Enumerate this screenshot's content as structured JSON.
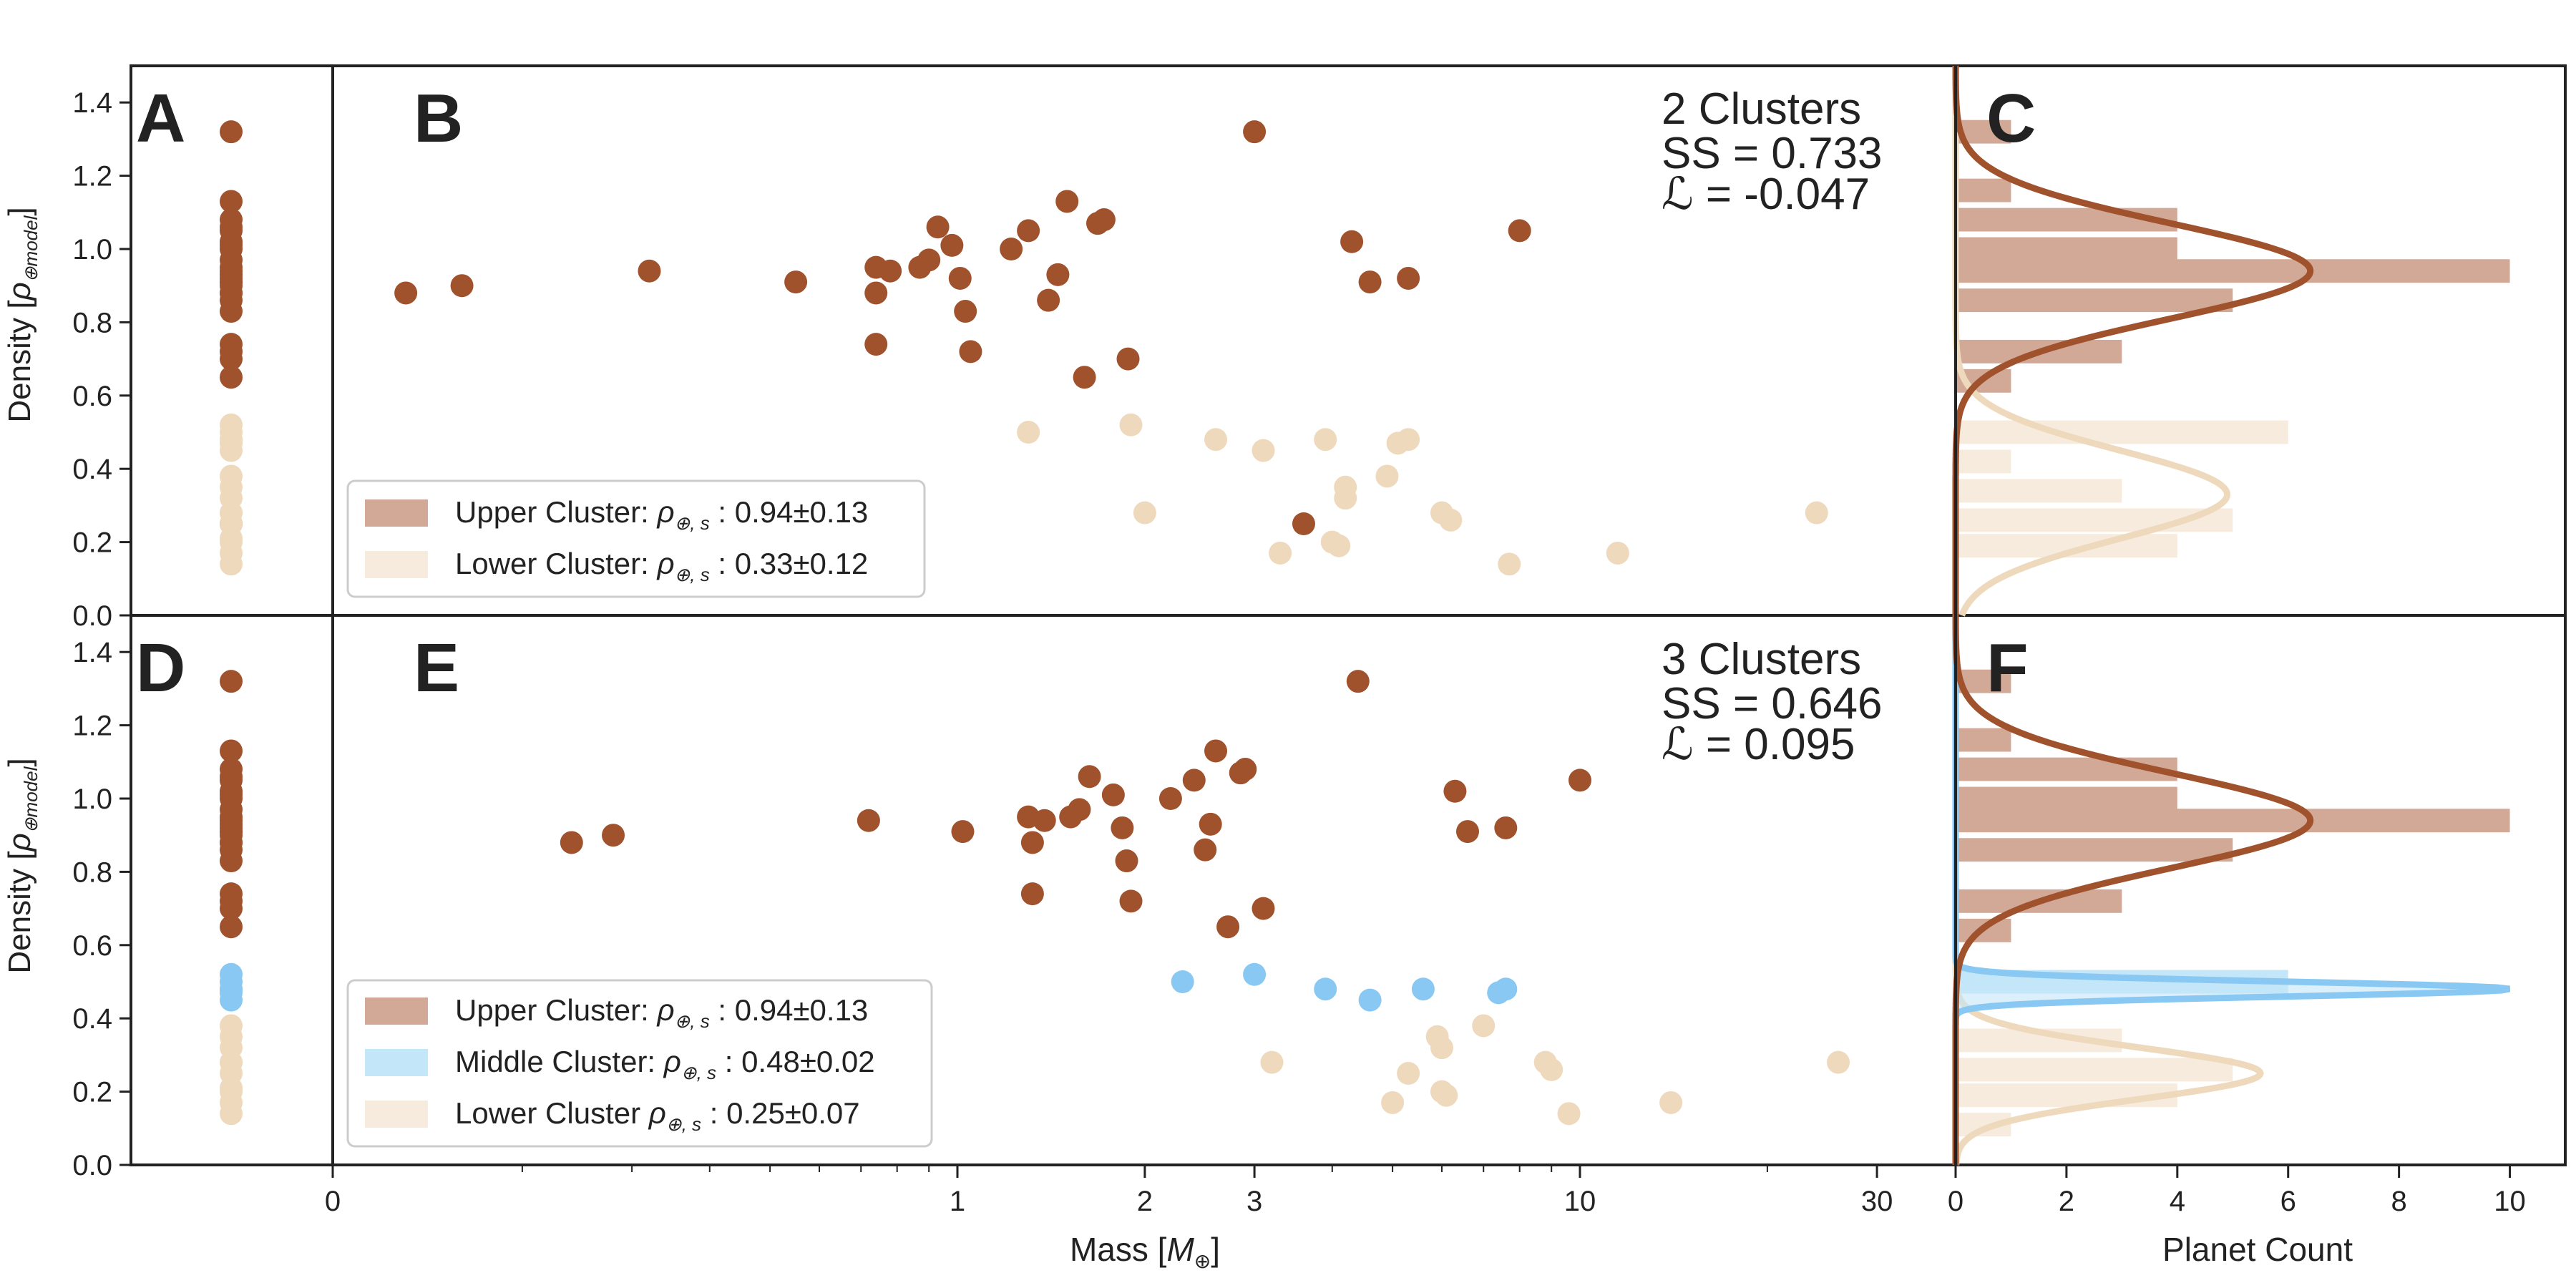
{
  "colors": {
    "upper": "#a0522d",
    "upper_bar": "#d2a997",
    "middle": "#88c8f2",
    "middle_bar": "#c3e6f9",
    "lower": "#eed9bd",
    "lower_bar": "#f6ebdd",
    "axis": "#222222"
  },
  "panel_letters": [
    "A",
    "B",
    "C",
    "D",
    "E",
    "F"
  ],
  "axes_text": {
    "ylabel_main": "Density [",
    "ylabel_rho": "ρ",
    "ylabel_sub": "⊕model",
    "ylabel_end": "]",
    "xlabel_mass": "Mass [",
    "xlabel_M": "M",
    "xlabel_sub": "⊕",
    "xlabel_end": "]",
    "xlabel_count": "Planet Count",
    "y_ticks": [
      "0.0",
      "0.2",
      "0.4",
      "0.6",
      "0.8",
      "1.0",
      "1.2",
      "1.4"
    ],
    "mass_ticks": [
      {
        "value": 0,
        "label": "0"
      },
      {
        "value": 1,
        "label": "1"
      },
      {
        "value": 2,
        "label": "2"
      },
      {
        "value": 3,
        "label": "3"
      },
      {
        "value": 10,
        "label": "10"
      },
      {
        "value": 30,
        "label": "30"
      }
    ],
    "count_ticks": [
      "0",
      "2",
      "4",
      "6",
      "8",
      "10"
    ]
  },
  "annotations": {
    "top": {
      "line1": "2 Clusters",
      "line2": "SS = 0.733",
      "line3": "ℒ = -0.047"
    },
    "bottom": {
      "line1": "3 Clusters",
      "line2": "SS = 0.646",
      "line3": "ℒ = 0.095"
    }
  },
  "legends": {
    "top": [
      {
        "cluster": "upper",
        "label": "Upper Cluster: ",
        "rho": "ρ",
        "sub": "⊕, s",
        "value": " : 0.94±0.13"
      },
      {
        "cluster": "lower",
        "label": "Lower Cluster: ",
        "rho": "ρ",
        "sub": "⊕, s",
        "value": " : 0.33±0.12"
      }
    ],
    "bottom": [
      {
        "cluster": "upper",
        "label": "Upper Cluster: ",
        "rho": "ρ",
        "sub": "⊕, s",
        "value": " : 0.94±0.13"
      },
      {
        "cluster": "middle",
        "label": "Middle Cluster: ",
        "rho": "ρ",
        "sub": "⊕, s",
        "value": " : 0.48±0.02"
      },
      {
        "cluster": "lower",
        "label": "Lower Cluster ",
        "rho": "ρ",
        "sub": "⊕, s",
        "value": " : 0.25±0.07"
      }
    ]
  },
  "chart_data": [
    {
      "panel": "A",
      "type": "scatter",
      "description_free": true,
      "ylim": [
        0,
        1.5
      ],
      "points_upper": [
        1.32,
        1.13,
        1.08,
        1.06,
        1.05,
        1.02,
        1.01,
        1.0,
        0.97,
        0.95,
        0.94,
        0.93,
        0.92,
        0.91,
        0.91,
        0.9,
        0.88,
        0.88,
        0.86,
        0.83,
        0.74,
        0.72,
        0.7,
        0.65,
        0.25
      ],
      "points_lower": [
        0.52,
        0.5,
        0.48,
        0.48,
        0.47,
        0.45,
        0.38,
        0.35,
        0.32,
        0.28,
        0.28,
        0.25,
        0.21,
        0.2,
        0.17,
        0.14
      ]
    },
    {
      "panel": "B",
      "type": "scatter",
      "xscale": "log",
      "xlim": [
        0.1,
        41
      ],
      "ylim": [
        0,
        1.5
      ],
      "xlabel": "Mass [M⊕]",
      "ylabel": "Density [ρ⊕model]",
      "upper": [
        [
          0.13,
          0.88
        ],
        [
          0.16,
          0.9
        ],
        [
          0.32,
          0.94
        ],
        [
          0.55,
          0.91
        ],
        [
          0.74,
          0.95
        ],
        [
          0.74,
          0.88
        ],
        [
          0.74,
          0.74
        ],
        [
          0.78,
          0.94
        ],
        [
          0.87,
          0.95
        ],
        [
          0.9,
          0.97
        ],
        [
          0.93,
          1.06
        ],
        [
          0.98,
          1.01
        ],
        [
          1.01,
          0.92
        ],
        [
          1.03,
          0.83
        ],
        [
          1.05,
          0.72
        ],
        [
          1.22,
          1.0
        ],
        [
          1.3,
          1.05
        ],
        [
          1.4,
          0.86
        ],
        [
          1.45,
          0.93
        ],
        [
          1.5,
          1.13
        ],
        [
          1.6,
          0.65
        ],
        [
          1.68,
          1.07
        ],
        [
          1.72,
          1.08
        ],
        [
          1.88,
          0.7
        ],
        [
          3.0,
          1.32
        ],
        [
          3.6,
          0.25
        ],
        [
          4.3,
          1.02
        ],
        [
          4.6,
          0.91
        ],
        [
          5.3,
          0.92
        ],
        [
          8.0,
          1.05
        ]
      ],
      "lower": [
        [
          1.3,
          0.5
        ],
        [
          1.9,
          0.52
        ],
        [
          2.0,
          0.28
        ],
        [
          2.6,
          0.48
        ],
        [
          3.1,
          0.45
        ],
        [
          3.3,
          0.17
        ],
        [
          3.9,
          0.48
        ],
        [
          4.0,
          0.2
        ],
        [
          4.1,
          0.19
        ],
        [
          4.2,
          0.35
        ],
        [
          4.2,
          0.32
        ],
        [
          4.9,
          0.38
        ],
        [
          5.1,
          0.47
        ],
        [
          5.3,
          0.48
        ],
        [
          6.0,
          0.28
        ],
        [
          6.2,
          0.26
        ],
        [
          7.7,
          0.14
        ],
        [
          11.5,
          0.17
        ],
        [
          24,
          0.28
        ]
      ]
    },
    {
      "panel": "C",
      "type": "bar",
      "orientation": "horizontal",
      "xlabel": "Planet Count",
      "xlim": [
        0,
        11
      ],
      "ylim": [
        0,
        1.5
      ],
      "bin_width": 0.072,
      "upper_bins": [
        {
          "y": 1.32,
          "count": 1
        },
        {
          "y": 1.16,
          "count": 1
        },
        {
          "y": 1.08,
          "count": 4
        },
        {
          "y": 1.0,
          "count": 4
        },
        {
          "y": 0.94,
          "count": 10
        },
        {
          "y": 0.86,
          "count": 5
        },
        {
          "y": 0.72,
          "count": 3
        },
        {
          "y": 0.64,
          "count": 1
        }
      ],
      "lower_bins": [
        {
          "y": 0.5,
          "count": 6
        },
        {
          "y": 0.42,
          "count": 1
        },
        {
          "y": 0.34,
          "count": 3
        },
        {
          "y": 0.26,
          "count": 5
        },
        {
          "y": 0.19,
          "count": 4
        }
      ],
      "upper_curve": {
        "mu": 0.94,
        "sigma": 0.13,
        "peak": 6.4
      },
      "lower_curve": {
        "mu": 0.33,
        "sigma": 0.12,
        "peak": 4.9
      }
    },
    {
      "panel": "D",
      "type": "scatter",
      "ylim": [
        0,
        1.5
      ],
      "points_upper": [
        1.32,
        1.13,
        1.08,
        1.06,
        1.05,
        1.02,
        1.01,
        1.0,
        0.97,
        0.95,
        0.94,
        0.93,
        0.92,
        0.91,
        0.91,
        0.9,
        0.88,
        0.88,
        0.86,
        0.83,
        0.74,
        0.72,
        0.7,
        0.65
      ],
      "points_middle": [
        0.52,
        0.5,
        0.48,
        0.48,
        0.47,
        0.45
      ],
      "points_lower": [
        0.38,
        0.35,
        0.32,
        0.28,
        0.28,
        0.25,
        0.21,
        0.2,
        0.17,
        0.14
      ]
    },
    {
      "panel": "E",
      "type": "scatter",
      "xscale": "log",
      "xlim": [
        0.1,
        41
      ],
      "ylim": [
        0,
        1.5
      ],
      "upper": [
        [
          0.24,
          0.88
        ],
        [
          0.28,
          0.9
        ],
        [
          0.72,
          0.94
        ],
        [
          1.02,
          0.91
        ],
        [
          1.3,
          0.95
        ],
        [
          1.32,
          0.88
        ],
        [
          1.32,
          0.74
        ],
        [
          1.38,
          0.94
        ],
        [
          1.52,
          0.95
        ],
        [
          1.57,
          0.97
        ],
        [
          1.63,
          1.06
        ],
        [
          1.78,
          1.01
        ],
        [
          1.84,
          0.92
        ],
        [
          1.87,
          0.83
        ],
        [
          1.9,
          0.72
        ],
        [
          2.2,
          1.0
        ],
        [
          2.4,
          1.05
        ],
        [
          2.5,
          0.86
        ],
        [
          2.55,
          0.93
        ],
        [
          2.6,
          1.13
        ],
        [
          2.85,
          1.07
        ],
        [
          2.9,
          1.08
        ],
        [
          2.72,
          0.65
        ],
        [
          3.1,
          0.7
        ],
        [
          4.4,
          1.32
        ],
        [
          6.3,
          1.02
        ],
        [
          6.6,
          0.91
        ],
        [
          7.6,
          0.92
        ],
        [
          10,
          1.05
        ]
      ],
      "middle": [
        [
          2.3,
          0.5
        ],
        [
          3.0,
          0.52
        ],
        [
          3.9,
          0.48
        ],
        [
          4.6,
          0.45
        ],
        [
          5.6,
          0.48
        ],
        [
          7.4,
          0.47
        ],
        [
          7.6,
          0.48
        ]
      ],
      "lower": [
        [
          3.2,
          0.28
        ],
        [
          5.0,
          0.17
        ],
        [
          5.3,
          0.25
        ],
        [
          5.9,
          0.35
        ],
        [
          6.0,
          0.32
        ],
        [
          6.0,
          0.2
        ],
        [
          6.1,
          0.19
        ],
        [
          7.0,
          0.38
        ],
        [
          8.8,
          0.28
        ],
        [
          9.0,
          0.26
        ],
        [
          9.6,
          0.14
        ],
        [
          14.0,
          0.17
        ],
        [
          26,
          0.28
        ]
      ]
    },
    {
      "panel": "F",
      "type": "bar",
      "orientation": "horizontal",
      "xlabel": "Planet Count",
      "xlim": [
        0,
        11
      ],
      "ylim": [
        0,
        1.5
      ],
      "bin_width": 0.072,
      "upper_bins": [
        {
          "y": 1.32,
          "count": 1
        },
        {
          "y": 1.16,
          "count": 1
        },
        {
          "y": 1.08,
          "count": 4
        },
        {
          "y": 1.0,
          "count": 4
        },
        {
          "y": 0.94,
          "count": 10
        },
        {
          "y": 0.86,
          "count": 5
        },
        {
          "y": 0.72,
          "count": 3
        },
        {
          "y": 0.64,
          "count": 1
        }
      ],
      "middle_bins": [
        {
          "y": 0.5,
          "count": 6
        }
      ],
      "lower_bins": [
        {
          "y": 0.34,
          "count": 3
        },
        {
          "y": 0.26,
          "count": 5
        },
        {
          "y": 0.19,
          "count": 4
        },
        {
          "y": 0.11,
          "count": 1
        }
      ],
      "upper_curve": {
        "mu": 0.94,
        "sigma": 0.13,
        "peak": 6.4
      },
      "middle_curve": {
        "mu": 0.48,
        "sigma": 0.02,
        "peak": 10.0
      },
      "lower_curve": {
        "mu": 0.25,
        "sigma": 0.07,
        "peak": 5.5
      }
    }
  ]
}
